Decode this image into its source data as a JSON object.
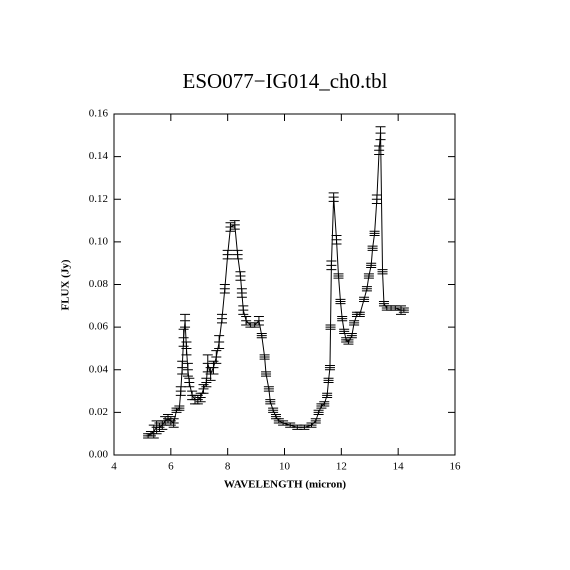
{
  "chart_data": {
    "type": "line",
    "title": "ESO077−IG014_ch0.tbl",
    "xlabel": "WAVELENGTH (micron)",
    "ylabel": "FLUX (Jy)",
    "color": "#000000",
    "xlim": [
      4,
      16
    ],
    "xticks": [
      4,
      6,
      8,
      10,
      12,
      14,
      16
    ],
    "ylim": [
      0,
      0.16
    ],
    "yticks": [
      {
        "value": 0,
        "label": "0.00"
      },
      {
        "value": 0.02,
        "label": "0.02"
      },
      {
        "value": 0.04,
        "label": "0.04"
      },
      {
        "value": 0.06,
        "label": "0.06"
      },
      {
        "value": 0.08,
        "label": "0.08"
      },
      {
        "value": 0.1,
        "label": "0.10"
      },
      {
        "value": 0.12,
        "label": "0.12"
      },
      {
        "value": 0.14,
        "label": "0.14"
      },
      {
        "value": 0.16,
        "label": "0.16"
      }
    ],
    "x": [
      5.2,
      5.3,
      5.4,
      5.5,
      5.6,
      5.7,
      5.8,
      5.9,
      6.0,
      6.1,
      6.2,
      6.3,
      6.35,
      6.4,
      6.45,
      6.5,
      6.55,
      6.6,
      6.65,
      6.75,
      6.85,
      6.95,
      7.05,
      7.15,
      7.25,
      7.3,
      7.4,
      7.5,
      7.6,
      7.7,
      7.8,
      7.9,
      8.0,
      8.1,
      8.25,
      8.35,
      8.45,
      8.5,
      8.55,
      8.65,
      8.8,
      8.95,
      9.1,
      9.2,
      9.3,
      9.35,
      9.45,
      9.5,
      9.6,
      9.7,
      9.8,
      9.95,
      10.2,
      10.45,
      10.7,
      10.95,
      11.1,
      11.2,
      11.3,
      11.4,
      11.5,
      11.55,
      11.6,
      11.62,
      11.65,
      11.73,
      11.83,
      11.9,
      11.97,
      12.03,
      12.1,
      12.17,
      12.25,
      12.37,
      12.45,
      12.55,
      12.65,
      12.8,
      12.9,
      12.97,
      13.05,
      13.1,
      13.17,
      13.25,
      13.33,
      13.38,
      13.45,
      13.5,
      13.6,
      13.75,
      13.9,
      14.1,
      14.2
    ],
    "values": [
      0.009,
      0.01,
      0.011,
      0.013,
      0.013,
      0.014,
      0.016,
      0.017,
      0.016,
      0.015,
      0.021,
      0.022,
      0.03,
      0.041,
      0.055,
      0.063,
      0.05,
      0.04,
      0.034,
      0.028,
      0.026,
      0.026,
      0.027,
      0.031,
      0.034,
      0.043,
      0.038,
      0.041,
      0.046,
      0.053,
      0.064,
      0.078,
      0.094,
      0.107,
      0.108,
      0.094,
      0.084,
      0.076,
      0.068,
      0.063,
      0.061,
      0.061,
      0.063,
      0.056,
      0.046,
      0.038,
      0.031,
      0.025,
      0.021,
      0.018,
      0.016,
      0.015,
      0.014,
      0.013,
      0.013,
      0.014,
      0.016,
      0.02,
      0.023,
      0.024,
      0.028,
      0.035,
      0.041,
      0.06,
      0.089,
      0.121,
      0.101,
      0.084,
      0.072,
      0.064,
      0.058,
      0.054,
      0.053,
      0.056,
      0.062,
      0.066,
      0.066,
      0.073,
      0.078,
      0.084,
      0.089,
      0.097,
      0.104,
      0.12,
      0.143,
      0.151,
      0.086,
      0.071,
      0.069,
      0.069,
      0.069,
      0.068,
      0.068
    ],
    "errors": [
      0.001,
      0.001,
      0.003,
      0.003,
      0.002,
      0.002,
      0.002,
      0.002,
      0.002,
      0.002,
      0.001,
      0.001,
      0.002,
      0.003,
      0.004,
      0.003,
      0.003,
      0.003,
      0.002,
      0.002,
      0.002,
      0.002,
      0.002,
      0.002,
      0.002,
      0.004,
      0.003,
      0.003,
      0.003,
      0.003,
      0.002,
      0.002,
      0.002,
      0.002,
      0.002,
      0.002,
      0.002,
      0.002,
      0.002,
      0.002,
      0.001,
      0.001,
      0.002,
      0.001,
      0.001,
      0.001,
      0.001,
      0.001,
      0.001,
      0.001,
      0.001,
      0.001,
      0.001,
      0.001,
      0.001,
      0.001,
      0.001,
      0.001,
      0.001,
      0.001,
      0.001,
      0.001,
      0.001,
      0.001,
      0.002,
      0.002,
      0.002,
      0.001,
      0.001,
      0.001,
      0.001,
      0.001,
      0.001,
      0.001,
      0.001,
      0.001,
      0.001,
      0.001,
      0.001,
      0.001,
      0.001,
      0.001,
      0.001,
      0.002,
      0.002,
      0.003,
      0.001,
      0.001,
      0.001,
      0.001,
      0.001,
      0.002,
      0.001
    ]
  }
}
